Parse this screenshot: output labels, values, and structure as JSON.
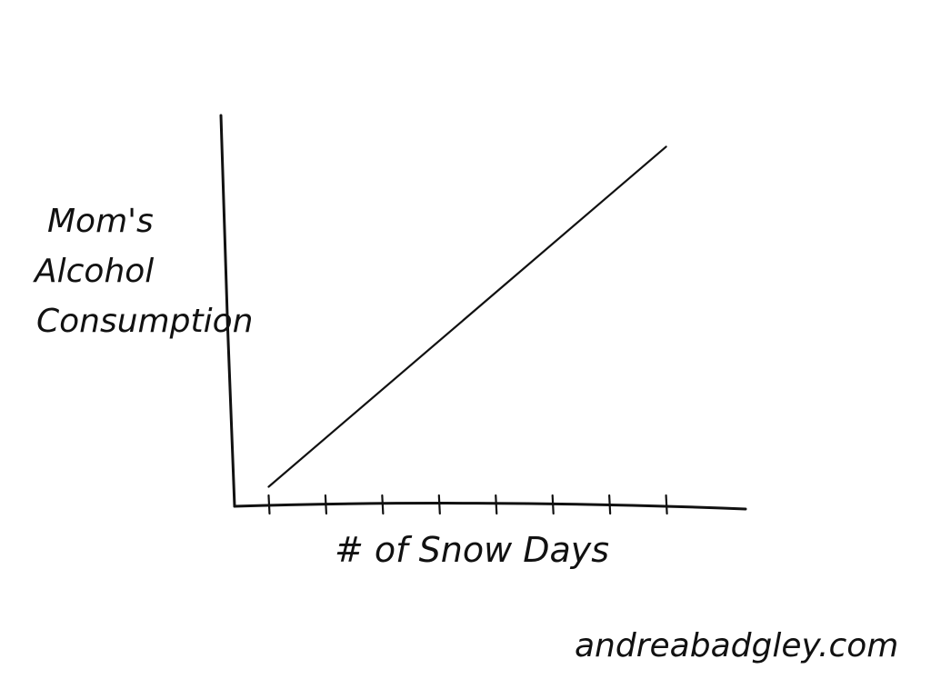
{
  "chart_data": {
    "type": "line",
    "title": "",
    "xlabel": "# of Snow Days",
    "ylabel_lines": [
      "Mom's",
      "Alcohol",
      "Consumption"
    ],
    "x_ticks": 8,
    "series": [
      {
        "values": [
          [
            0,
            0.05
          ],
          [
            7,
            0.92
          ]
        ]
      }
    ],
    "xlim": [
      -0.6,
      8.4
    ],
    "ylim": [
      0,
      1
    ],
    "grid": false,
    "legend": "none",
    "line_color": "#111111"
  },
  "footer": {
    "credit": "andreabadgley.com"
  }
}
